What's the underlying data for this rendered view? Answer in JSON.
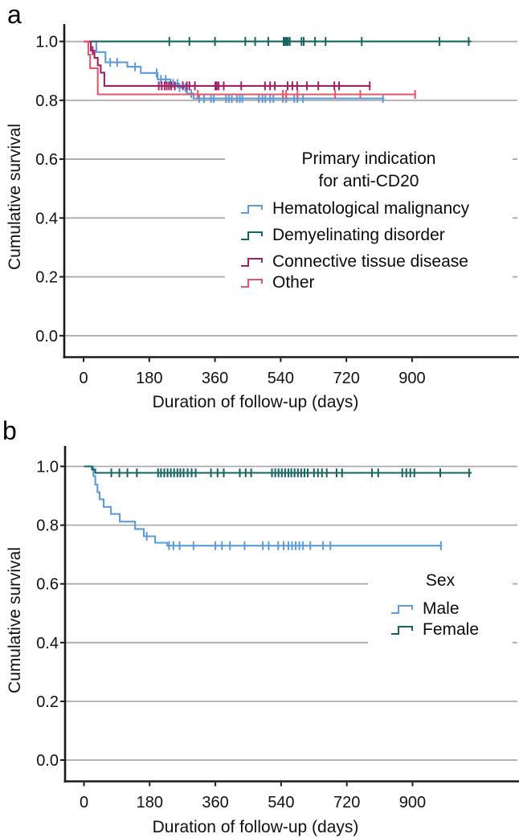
{
  "figure": {
    "panel_a_label": "a",
    "panel_b_label": "b",
    "background": "#ffffff",
    "gridline_color": "#ababab",
    "axis_color": "#1a1a1a"
  },
  "chart_data": [
    {
      "panel": "a",
      "type": "line",
      "subtype": "kaplan_meier_step",
      "xlabel": "Duration of follow-up (days)",
      "ylabel": "Cumulative survival",
      "x_ticks": [
        0,
        180,
        360,
        540,
        720,
        900
      ],
      "y_tick_labels": [
        "1.0",
        "0.8",
        "0.6",
        "0.4",
        "0.2",
        "0.0"
      ],
      "y_tick_values": [
        1.0,
        0.8,
        0.6,
        0.4,
        0.2,
        0.0
      ],
      "xlim": [
        -55,
        1195
      ],
      "ylim": [
        -0.07,
        1.06
      ],
      "grid": "horizontal",
      "legend": {
        "title_lines": [
          "Primary indication",
          "for anti-CD20"
        ],
        "position": "center-right"
      },
      "series": [
        {
          "name": "Hematological malignancy",
          "color": "#5c9cd8",
          "start": [
            0,
            1.0
          ],
          "steps": [
            [
              35,
              0.964
            ],
            [
              60,
              0.929
            ],
            [
              120,
              0.914
            ],
            [
              157,
              0.893
            ],
            [
              203,
              0.871
            ],
            [
              238,
              0.857
            ],
            [
              261,
              0.843
            ],
            [
              283,
              0.823
            ],
            [
              301,
              0.806
            ]
          ],
          "end": 824,
          "censor_days": [
            73,
            92,
            141,
            200,
            212,
            225,
            245,
            257,
            263,
            279,
            295,
            317,
            330,
            349,
            357,
            390,
            398,
            406,
            420,
            428,
            435,
            480,
            490,
            498,
            511,
            520,
            546,
            555,
            577,
            586,
            601,
            820
          ]
        },
        {
          "name": "Demyelinating disorder",
          "color": "#166461",
          "start": [
            0,
            1.0
          ],
          "steps": [],
          "end": 1062,
          "censor_days": [
            235,
            290,
            360,
            443,
            470,
            506,
            548,
            552,
            556,
            560,
            565,
            597,
            603,
            634,
            663,
            762,
            975,
            1055
          ]
        },
        {
          "name": "Connective tissue disease",
          "color": "#a02162",
          "start": [
            0,
            1.0
          ],
          "steps": [
            [
              20,
              0.969
            ],
            [
              30,
              0.944
            ],
            [
              39,
              0.919
            ],
            [
              47,
              0.894
            ],
            [
              57,
              0.849
            ]
          ],
          "end": 786,
          "censor_days": [
            25,
            206,
            214,
            222,
            228,
            234,
            240,
            250,
            272,
            283,
            290,
            305,
            361,
            365,
            370,
            384,
            432,
            497,
            511,
            524,
            559,
            572,
            585,
            612,
            643,
            687,
            700,
            784
          ]
        },
        {
          "name": "Other",
          "color": "#e75668",
          "start": [
            0,
            1.0
          ],
          "steps": [
            [
              13,
              0.955
            ],
            [
              18,
              0.909
            ],
            [
              39,
              0.82
            ]
          ],
          "end": 911,
          "censor_days": [
            313,
            546,
            555,
            586,
            689,
            758,
            908
          ]
        }
      ]
    },
    {
      "panel": "b",
      "type": "line",
      "subtype": "kaplan_meier_step",
      "xlabel": "Duration of follow-up (days)",
      "ylabel": "Cumulative survival",
      "x_ticks": [
        0,
        180,
        360,
        540,
        720,
        900
      ],
      "y_tick_labels": [
        "1.0",
        "0.8",
        "0.6",
        "0.4",
        "0.2",
        "0.0"
      ],
      "y_tick_values": [
        1.0,
        0.8,
        0.6,
        0.4,
        0.2,
        0.0
      ],
      "xlim": [
        -55,
        1195
      ],
      "ylim": [
        -0.07,
        1.06
      ],
      "grid": "horizontal",
      "legend": {
        "title_lines": [
          "Sex"
        ],
        "position": "lower-right"
      },
      "series": [
        {
          "name": "Male",
          "color": "#5c9cd8",
          "start": [
            0,
            1.0
          ],
          "steps": [
            [
              26,
              0.967
            ],
            [
              31,
              0.938
            ],
            [
              37,
              0.912
            ],
            [
              43,
              0.888
            ],
            [
              54,
              0.862
            ],
            [
              74,
              0.838
            ],
            [
              98,
              0.812
            ],
            [
              140,
              0.787
            ],
            [
              164,
              0.762
            ],
            [
              195,
              0.74
            ],
            [
              228,
              0.73
            ]
          ],
          "end": 980,
          "censor_days": [
            172,
            233,
            245,
            262,
            300,
            360,
            378,
            400,
            440,
            490,
            506,
            532,
            547,
            560,
            570,
            580,
            590,
            600,
            620,
            655,
            675,
            978
          ]
        },
        {
          "name": "Female",
          "color": "#166461",
          "start": [
            0,
            1.0
          ],
          "steps": [
            [
              22,
              0.989
            ],
            [
              31,
              0.978
            ]
          ],
          "end": 1062,
          "censor_days": [
            75,
            97,
            119,
            145,
            203,
            211,
            220,
            229,
            238,
            247,
            256,
            264,
            273,
            284,
            295,
            306,
            348,
            366,
            383,
            427,
            443,
            458,
            515,
            524,
            533,
            542,
            551,
            560,
            568,
            577,
            586,
            595,
            604,
            613,
            630,
            641,
            652,
            665,
            692,
            707,
            789,
            806,
            872,
            883,
            894,
            905,
            976,
            1055
          ]
        }
      ]
    }
  ]
}
